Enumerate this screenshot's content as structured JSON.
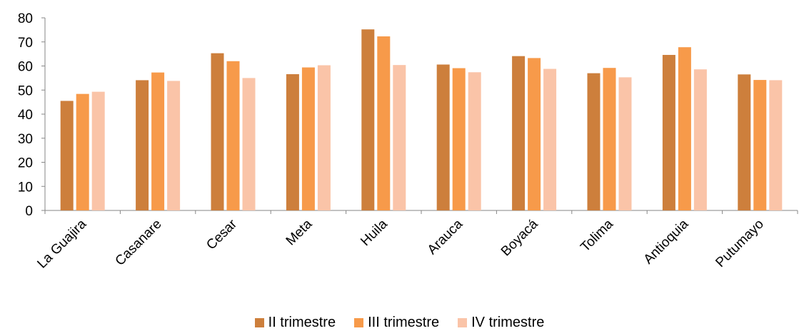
{
  "chart_data": {
    "type": "bar",
    "categories": [
      "La Guajira",
      "Casanare",
      "Cesar",
      "Meta",
      "Huila",
      "Arauca",
      "Boyacá",
      "Tolima",
      "Antioquia",
      "Putumayo"
    ],
    "series": [
      {
        "name": "II trimestre",
        "color": "#CD7F3C",
        "values": [
          45.5,
          54.1,
          65.3,
          56.6,
          75.2,
          60.6,
          64.1,
          57.0,
          64.6,
          56.5
        ]
      },
      {
        "name": "III trimestre",
        "color": "#F79A4A",
        "values": [
          48.4,
          57.3,
          62.0,
          59.4,
          72.3,
          59.1,
          63.3,
          59.2,
          67.8,
          54.2
        ]
      },
      {
        "name": "IV trimestre",
        "color": "#FAC4A8",
        "values": [
          49.3,
          53.8,
          55.0,
          60.3,
          60.4,
          57.4,
          58.8,
          55.3,
          58.6,
          54.1
        ]
      }
    ],
    "title": "",
    "xlabel": "",
    "ylabel": "",
    "ylim": [
      0,
      80
    ],
    "yticks": [
      "0",
      "10",
      "20",
      "30",
      "40",
      "50",
      "60",
      "70",
      "80"
    ],
    "grid": false,
    "legend_position": "bottom"
  }
}
